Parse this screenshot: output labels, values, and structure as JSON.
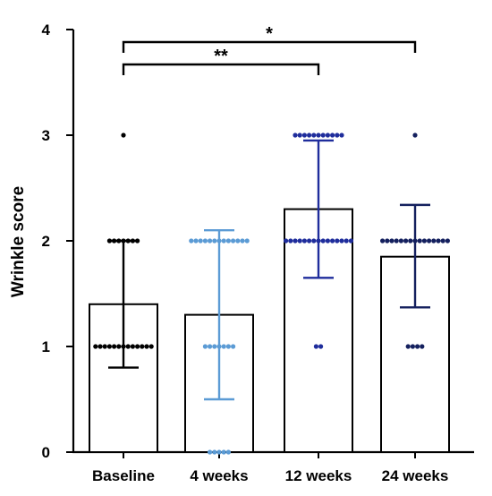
{
  "chart_data": {
    "type": "bar",
    "ylabel": "Wrinkle score",
    "xlabel": "",
    "ylim": [
      0,
      4
    ],
    "yticks": [
      0,
      1,
      2,
      3,
      4
    ],
    "categories": [
      "Baseline",
      "4 weeks",
      "12 weeks",
      "24 weeks"
    ],
    "values": [
      1.4,
      1.3,
      2.3,
      1.85
    ],
    "error_bars": [
      {
        "low": 0.8,
        "high": 2.0
      },
      {
        "low": 0.5,
        "high": 2.1
      },
      {
        "low": 1.65,
        "high": 2.95
      },
      {
        "low": 1.37,
        "high": 2.34
      }
    ],
    "series_colors": [
      "#000000",
      "#5b9bd5",
      "#1f2d9c",
      "#14205e"
    ],
    "points": [
      [
        {
          "y": 3,
          "n": 1
        },
        {
          "y": 2,
          "n": 7
        },
        {
          "y": 1,
          "n": 13
        }
      ],
      [
        {
          "y": 2,
          "n": 13
        },
        {
          "y": 1,
          "n": 7
        },
        {
          "y": 0,
          "n": 5
        }
      ],
      [
        {
          "y": 3,
          "n": 11
        },
        {
          "y": 2,
          "n": 15
        },
        {
          "y": 1,
          "n": 2
        }
      ],
      [
        {
          "y": 3,
          "n": 1
        },
        {
          "y": 2,
          "n": 15
        },
        {
          "y": 1,
          "n": 4
        }
      ]
    ],
    "significance": [
      {
        "from": "Baseline",
        "to": "12 weeks",
        "label": "**"
      },
      {
        "from": "Baseline",
        "to": "24 weeks",
        "label": "*"
      }
    ],
    "grid": false
  }
}
